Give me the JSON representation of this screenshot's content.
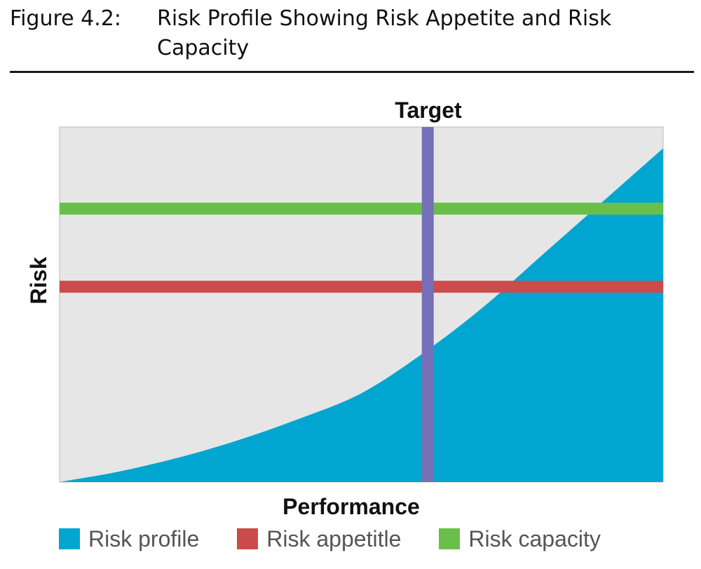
{
  "figure": {
    "label": "Figure 4.2:",
    "title": "Risk Profile Showing Risk Appetite and Risk Capacity"
  },
  "chart_data": {
    "type": "area",
    "title": "",
    "xlabel": "Performance",
    "ylabel": "Risk",
    "xlim": [
      0,
      1
    ],
    "ylim": [
      0,
      1
    ],
    "grid": false,
    "background_color": "#e6e6e6",
    "series": [
      {
        "name": "Risk profile",
        "kind": "area",
        "color": "#00a6d0",
        "x": [
          0.0,
          0.1,
          0.2,
          0.3,
          0.4,
          0.5,
          0.6,
          0.7,
          0.8,
          0.9,
          1.0
        ],
        "y": [
          0.0,
          0.03,
          0.07,
          0.12,
          0.18,
          0.25,
          0.36,
          0.49,
          0.64,
          0.79,
          0.94
        ]
      },
      {
        "name": "Risk appetitle",
        "kind": "hline",
        "color": "#cc4b4b",
        "y": 0.55
      },
      {
        "name": "Risk capacity",
        "kind": "hline",
        "color": "#6abf4b",
        "y": 0.77
      }
    ],
    "reference_lines": [
      {
        "label": "Target",
        "orientation": "vertical",
        "x": 0.61,
        "color": "#7570b8"
      }
    ],
    "legend": {
      "placement": "bottom",
      "entries": [
        {
          "label": "Risk profile",
          "color": "#00a6d0"
        },
        {
          "label": "Risk appetitle",
          "color": "#cc4b4b"
        },
        {
          "label": "Risk capacity",
          "color": "#6abf4b"
        }
      ]
    }
  }
}
